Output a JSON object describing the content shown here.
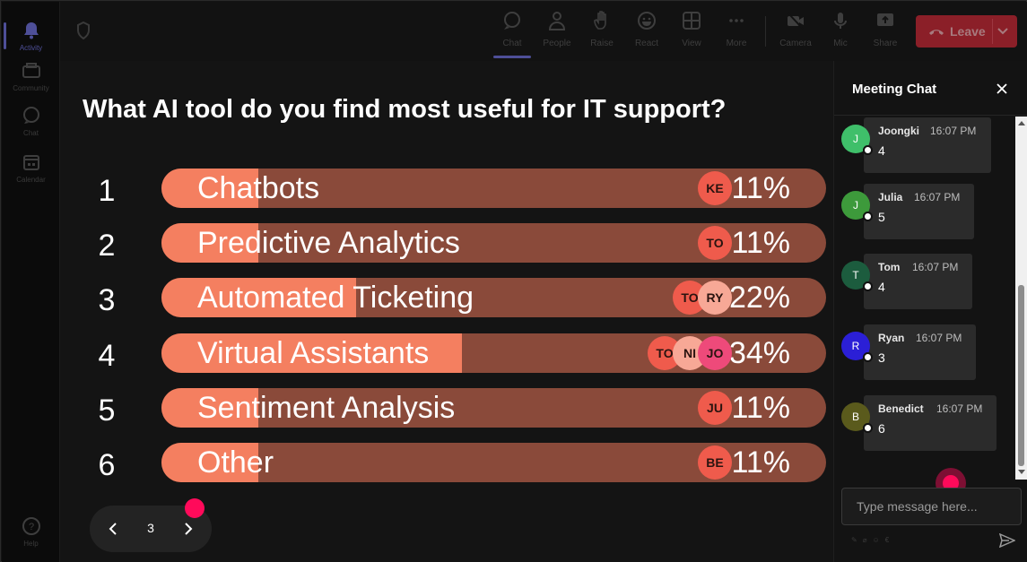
{
  "rail": {
    "items": [
      {
        "label": "Activity",
        "icon": "bell-icon",
        "active": true
      },
      {
        "label": "Community",
        "icon": "community-icon",
        "active": false
      },
      {
        "label": "Chat",
        "icon": "chat-icon",
        "active": false
      },
      {
        "label": "Calendar",
        "icon": "calendar-icon",
        "active": false
      }
    ],
    "help": "Help"
  },
  "toolbar": {
    "buttons": [
      {
        "label": "Chat",
        "icon": "chat-icon",
        "active": true
      },
      {
        "label": "People",
        "icon": "people-icon"
      },
      {
        "label": "Raise",
        "icon": "hand-icon"
      },
      {
        "label": "React",
        "icon": "react-icon"
      },
      {
        "label": "View",
        "icon": "grid-icon"
      },
      {
        "label": "More",
        "icon": "more-icon"
      },
      {
        "label": "Camera",
        "icon": "camera-icon"
      },
      {
        "label": "Mic",
        "icon": "mic-icon"
      },
      {
        "label": "Share",
        "icon": "share-icon"
      }
    ],
    "leave_label": "Leave"
  },
  "poll": {
    "question": "What AI tool do you find most useful for IT support?",
    "options": [
      {
        "num": "1",
        "label": "Chatbots",
        "percent": 11,
        "percent_label": "11%",
        "voters": [
          "KE"
        ]
      },
      {
        "num": "2",
        "label": "Predictive Analytics",
        "percent": 11,
        "percent_label": "11%",
        "voters": [
          "TO"
        ]
      },
      {
        "num": "3",
        "label": "Automated Ticketing",
        "percent": 22,
        "percent_label": "22%",
        "voters": [
          "TO",
          "RY"
        ]
      },
      {
        "num": "4",
        "label": "Virtual Assistants",
        "percent": 34,
        "percent_label": "34%",
        "voters": [
          "TO",
          "NI",
          "JO"
        ]
      },
      {
        "num": "5",
        "label": "Sentiment Analysis",
        "percent": 11,
        "percent_label": "11%",
        "voters": [
          "JU"
        ]
      },
      {
        "num": "6",
        "label": "Other",
        "percent": 11,
        "percent_label": "11%",
        "voters": [
          "BE"
        ]
      }
    ],
    "page": "3"
  },
  "colors": {
    "bar_fill": "#f47f60",
    "bar_track": "#8a4a3a",
    "accent": "#4e4f98",
    "leave": "#8b1f28",
    "highlight_dot": "#ff0a5a"
  },
  "chat": {
    "title": "Meeting Chat",
    "messages": [
      {
        "initial": "J",
        "name": "Joongki",
        "time": "16:07 PM",
        "text": "4",
        "color": "#3fbf6a"
      },
      {
        "initial": "J",
        "name": "Julia",
        "time": "16:07 PM",
        "text": "5",
        "color": "#3d9a3b"
      },
      {
        "initial": "T",
        "name": "Tom",
        "time": "16:07 PM",
        "text": "4",
        "color": "#1c5c3e"
      },
      {
        "initial": "R",
        "name": "Ryan",
        "time": "16:07 PM",
        "text": "3",
        "color": "#2b1fd6"
      },
      {
        "initial": "B",
        "name": "Benedict",
        "time": "16:07 PM",
        "text": "6",
        "color": "#5a5a1c"
      }
    ],
    "input_placeholder": "Type message here..."
  }
}
